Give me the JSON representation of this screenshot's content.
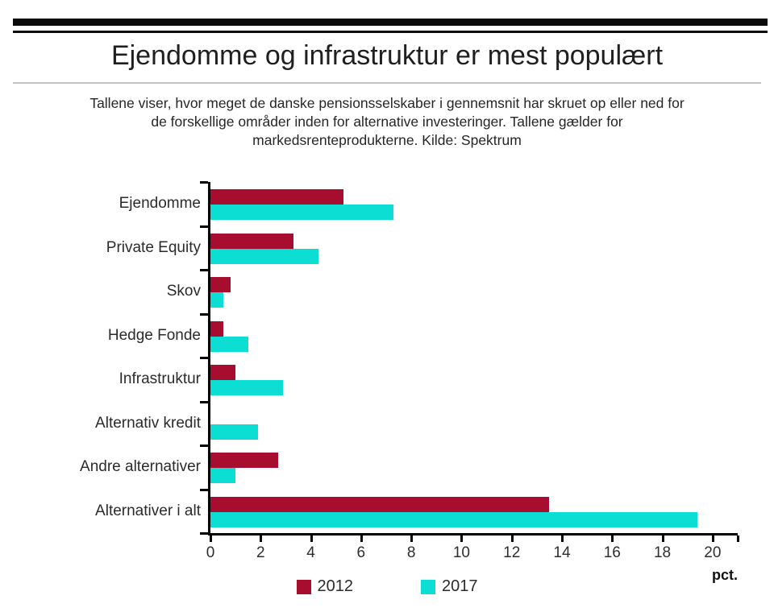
{
  "title": "Ejendomme og infrastruktur er mest populært",
  "subtitle_lines": [
    "Tallene viser, hvor meget de danske pensionsselskaber i gennemsnit har skruet op eller ned for",
    "de forskellige områder inden for alternative investeringer. Tallene gælder for",
    "markedsrenteprodukterne. Kilde: Spektrum"
  ],
  "colors": {
    "series_2012": "#A60D2E",
    "series_2017": "#0CDED3",
    "axis": "#000000",
    "masthead": "#0b0b0b",
    "divider": "#c3c3c3"
  },
  "chart_data": {
    "type": "bar",
    "orientation": "horizontal",
    "title": "Ejendomme og infrastruktur er mest populært",
    "categories": [
      "Ejendomme",
      "Private Equity",
      "Skov",
      "Hedge Fonde",
      "Infrastruktur",
      "Alternativ kredit",
      "Andre alternativer",
      "Alternativer i alt"
    ],
    "series": [
      {
        "name": "2012",
        "color": "#A60D2E",
        "values": [
          5.3,
          3.3,
          0.8,
          0.5,
          1.0,
          0,
          2.7,
          13.5
        ]
      },
      {
        "name": "2017",
        "color": "#0CDED3",
        "values": [
          7.3,
          4.3,
          0.5,
          1.5,
          2.9,
          1.9,
          1.0,
          19.4
        ]
      }
    ],
    "xlim": [
      0,
      21
    ],
    "x_ticks": [
      0,
      2,
      4,
      6,
      8,
      10,
      12,
      14,
      16,
      18,
      20
    ],
    "x_unit_label": "pct.",
    "xlabel": "pct.",
    "ylabel": "",
    "grid": false,
    "legend_position": "bottom"
  }
}
